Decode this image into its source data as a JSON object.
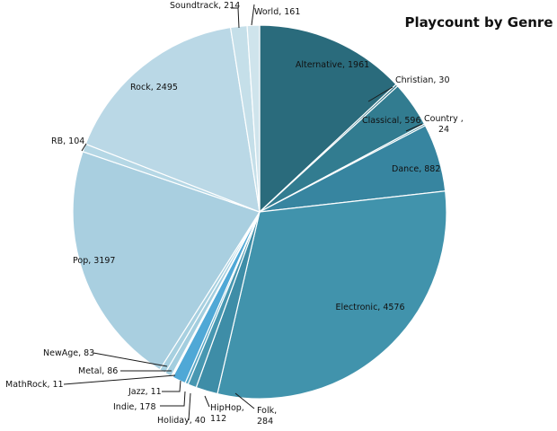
{
  "chart_data": {
    "type": "pie",
    "title": "Playcount by Genre",
    "start_angle_deg": 0,
    "direction": "clockwise",
    "slices": [
      {
        "label": "Alternative",
        "value": 1961,
        "display": "Alternative, 1961",
        "color": "#2a6b7c"
      },
      {
        "label": "Christian",
        "value": 30,
        "display": "Christian, 30",
        "color": "#2e7487"
      },
      {
        "label": "Classical",
        "value": 596,
        "display": "Classical, 596",
        "color": "#327c90"
      },
      {
        "label": "Country",
        "value": 24,
        "display": "Country , 24",
        "color": "#34829a"
      },
      {
        "label": "Dance",
        "value": 882,
        "display": "Dance, 882",
        "color": "#3785a0"
      },
      {
        "label": "Electronic",
        "value": 4576,
        "display": "Electronic, 4576",
        "color": "#4193ac"
      },
      {
        "label": "Folk",
        "value": 284,
        "display": "Folk, 284",
        "color": "#3e8da7"
      },
      {
        "label": "HipHop",
        "value": 112,
        "display": "HipHop, 112",
        "color": "#4797b1"
      },
      {
        "label": "Holiday",
        "value": 40,
        "display": "Holiday, 40",
        "color": "#56a6c4"
      },
      {
        "label": "Indie",
        "value": 178,
        "display": "Indie, 178",
        "color": "#4fa8d6"
      },
      {
        "label": "Jazz",
        "value": 11,
        "display": "Jazz, 11",
        "color": "#6ab4d4"
      },
      {
        "label": "MathRock",
        "value": 11,
        "display": "MathRock, 11",
        "color": "#8cc3d9"
      },
      {
        "label": "Metal",
        "value": 86,
        "display": "Metal, 86",
        "color": "#a3cedf"
      },
      {
        "label": "NewAge",
        "value": 83,
        "display": "NewAge, 83",
        "color": "#a7d0e0"
      },
      {
        "label": "Pop",
        "value": 3197,
        "display": "Pop, 3197",
        "color": "#a9cfe0"
      },
      {
        "label": "RB",
        "value": 104,
        "display": "RB, 104",
        "color": "#b5d7e5"
      },
      {
        "label": "Rock",
        "value": 2495,
        "display": "Rock, 2495",
        "color": "#bad8e6"
      },
      {
        "label": "Soundtrack",
        "value": 214,
        "display": "Soundtrack, 214",
        "color": "#c5dfe9"
      },
      {
        "label": "World",
        "value": 161,
        "display": "World, 161",
        "color": "#cfe4ec"
      }
    ]
  }
}
